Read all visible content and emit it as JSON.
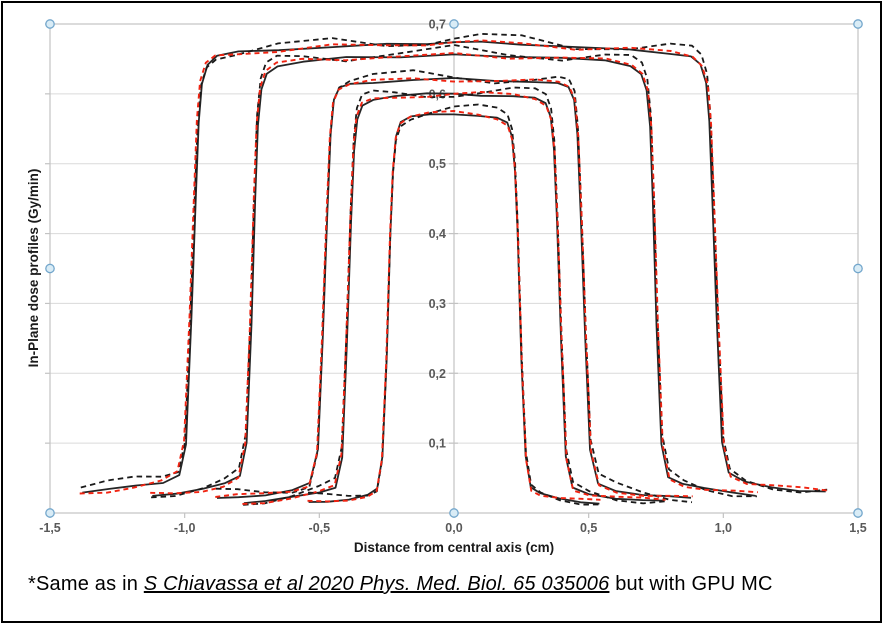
{
  "figure": {
    "caption": {
      "prefix": "*Same as in ",
      "citation": "S Chiavassa et al 2020 Phys. Med. Biol. 65 035006",
      "suffix": " but with GPU MC"
    }
  },
  "colors": {
    "frame_border": "#000000",
    "plot_border": "#c3c3c3",
    "gridline": "#dadada",
    "tick_label": "#595959",
    "axis_title": "#1a1a1a",
    "solid_line": "#262626",
    "dashed_black_line": "#1a1a1a",
    "dashed_red_line": "#f02311",
    "handle_fill": "#d9ecf6",
    "handle_stroke": "#74a7cc"
  },
  "chart_data": {
    "type": "line",
    "title": "",
    "xlabel": "Distance from central axis (cm)",
    "ylabel": "In-Plane  dose profiles (Gy/min)",
    "xlim": [
      -1.5,
      1.5
    ],
    "ylim": [
      0,
      0.7
    ],
    "grid": "horizontal-only",
    "legend": "none",
    "decimal_separator": "comma",
    "x_ticks": {
      "values": [
        -1.5,
        -1.0,
        -0.5,
        0.0,
        0.5,
        1.0,
        1.5
      ],
      "labels": [
        "-1,5",
        "-1,0",
        "-0,5",
        "0,0",
        "0,5",
        "1,0",
        "1,5"
      ]
    },
    "y_ticks": {
      "values": [
        0.1,
        0.2,
        0.3,
        0.4,
        0.5,
        0.6,
        0.7
      ],
      "labels": [
        "0,1",
        "0,2",
        "0,3",
        "0,4",
        "0,5",
        "0,6",
        "0,7"
      ]
    },
    "series_styles": [
      {
        "name": "solid-black",
        "stroke": "#262626",
        "dash": ""
      },
      {
        "name": "dashed-black",
        "stroke": "#1a1a1a",
        "dash": "5.5 4"
      },
      {
        "name": "dashed-red",
        "stroke": "#f02311",
        "dash": "5 3.8"
      }
    ],
    "profiles": [
      {
        "name": "profile-1-widest",
        "points": [
          [
            -1.38,
            0.03
          ],
          [
            -1.28,
            0.033
          ],
          [
            -1.18,
            0.038
          ],
          [
            -1.08,
            0.044
          ],
          [
            -1.02,
            0.056
          ],
          [
            -0.995,
            0.1
          ],
          [
            -0.975,
            0.28
          ],
          [
            -0.958,
            0.46
          ],
          [
            -0.948,
            0.56
          ],
          [
            -0.936,
            0.615
          ],
          [
            -0.915,
            0.642
          ],
          [
            -0.88,
            0.654
          ],
          [
            -0.8,
            0.659
          ],
          [
            -0.65,
            0.663
          ],
          [
            -0.45,
            0.667
          ],
          [
            -0.25,
            0.671
          ],
          [
            -0.1,
            0.673
          ],
          [
            0,
            0.674
          ],
          [
            0.1,
            0.673
          ],
          [
            0.25,
            0.671
          ],
          [
            0.45,
            0.667
          ],
          [
            0.65,
            0.663
          ],
          [
            0.8,
            0.659
          ],
          [
            0.88,
            0.654
          ],
          [
            0.915,
            0.642
          ],
          [
            0.936,
            0.615
          ],
          [
            0.948,
            0.56
          ],
          [
            0.958,
            0.46
          ],
          [
            0.975,
            0.28
          ],
          [
            0.995,
            0.1
          ],
          [
            1.02,
            0.056
          ],
          [
            1.08,
            0.044
          ],
          [
            1.18,
            0.038
          ],
          [
            1.28,
            0.033
          ],
          [
            1.38,
            0.03
          ]
        ]
      },
      {
        "name": "profile-2",
        "points": [
          [
            -1.12,
            0.026
          ],
          [
            -1.03,
            0.029
          ],
          [
            -0.93,
            0.034
          ],
          [
            -0.85,
            0.041
          ],
          [
            -0.795,
            0.052
          ],
          [
            -0.77,
            0.1
          ],
          [
            -0.752,
            0.27
          ],
          [
            -0.738,
            0.45
          ],
          [
            -0.728,
            0.555
          ],
          [
            -0.715,
            0.607
          ],
          [
            -0.695,
            0.63
          ],
          [
            -0.655,
            0.641
          ],
          [
            -0.56,
            0.647
          ],
          [
            -0.4,
            0.651
          ],
          [
            -0.2,
            0.654
          ],
          [
            0,
            0.655
          ],
          [
            0.2,
            0.654
          ],
          [
            0.4,
            0.651
          ],
          [
            0.56,
            0.647
          ],
          [
            0.655,
            0.641
          ],
          [
            0.695,
            0.63
          ],
          [
            0.715,
            0.607
          ],
          [
            0.728,
            0.555
          ],
          [
            0.738,
            0.45
          ],
          [
            0.752,
            0.27
          ],
          [
            0.77,
            0.1
          ],
          [
            0.795,
            0.052
          ],
          [
            0.85,
            0.041
          ],
          [
            0.93,
            0.034
          ],
          [
            1.03,
            0.029
          ],
          [
            1.12,
            0.026
          ]
        ]
      },
      {
        "name": "profile-3",
        "points": [
          [
            -0.88,
            0.02
          ],
          [
            -0.8,
            0.023
          ],
          [
            -0.7,
            0.027
          ],
          [
            -0.6,
            0.033
          ],
          [
            -0.535,
            0.042
          ],
          [
            -0.505,
            0.09
          ],
          [
            -0.487,
            0.25
          ],
          [
            -0.47,
            0.43
          ],
          [
            -0.458,
            0.54
          ],
          [
            -0.446,
            0.59
          ],
          [
            -0.425,
            0.608
          ],
          [
            -0.385,
            0.614
          ],
          [
            -0.3,
            0.617
          ],
          [
            -0.15,
            0.62
          ],
          [
            0,
            0.621
          ],
          [
            0.15,
            0.62
          ],
          [
            0.3,
            0.617
          ],
          [
            0.385,
            0.614
          ],
          [
            0.425,
            0.608
          ],
          [
            0.446,
            0.59
          ],
          [
            0.458,
            0.54
          ],
          [
            0.47,
            0.43
          ],
          [
            0.487,
            0.25
          ],
          [
            0.505,
            0.09
          ],
          [
            0.535,
            0.042
          ],
          [
            0.6,
            0.033
          ],
          [
            0.7,
            0.027
          ],
          [
            0.8,
            0.023
          ],
          [
            0.88,
            0.02
          ]
        ]
      },
      {
        "name": "profile-4",
        "points": [
          [
            -0.78,
            0.016
          ],
          [
            -0.7,
            0.018
          ],
          [
            -0.6,
            0.022
          ],
          [
            -0.5,
            0.028
          ],
          [
            -0.44,
            0.036
          ],
          [
            -0.415,
            0.08
          ],
          [
            -0.398,
            0.24
          ],
          [
            -0.382,
            0.42
          ],
          [
            -0.371,
            0.52
          ],
          [
            -0.359,
            0.565
          ],
          [
            -0.34,
            0.585
          ],
          [
            -0.3,
            0.593
          ],
          [
            -0.22,
            0.597
          ],
          [
            -0.1,
            0.599
          ],
          [
            0,
            0.6
          ],
          [
            0.1,
            0.599
          ],
          [
            0.22,
            0.597
          ],
          [
            0.3,
            0.593
          ],
          [
            0.34,
            0.585
          ],
          [
            0.359,
            0.565
          ],
          [
            0.371,
            0.52
          ],
          [
            0.382,
            0.42
          ],
          [
            0.398,
            0.24
          ],
          [
            0.415,
            0.08
          ],
          [
            0.44,
            0.036
          ],
          [
            0.5,
            0.028
          ],
          [
            0.6,
            0.022
          ],
          [
            0.7,
            0.018
          ],
          [
            0.78,
            0.016
          ]
        ]
      },
      {
        "name": "profile-5-narrowest",
        "points": [
          [
            -0.54,
            0.015
          ],
          [
            -0.47,
            0.017
          ],
          [
            -0.39,
            0.021
          ],
          [
            -0.32,
            0.027
          ],
          [
            -0.285,
            0.035
          ],
          [
            -0.266,
            0.08
          ],
          [
            -0.25,
            0.22
          ],
          [
            -0.236,
            0.4
          ],
          [
            -0.226,
            0.49
          ],
          [
            -0.215,
            0.538
          ],
          [
            -0.198,
            0.558
          ],
          [
            -0.16,
            0.566
          ],
          [
            -0.09,
            0.57
          ],
          [
            0,
            0.572
          ],
          [
            0.09,
            0.57
          ],
          [
            0.16,
            0.566
          ],
          [
            0.198,
            0.558
          ],
          [
            0.215,
            0.538
          ],
          [
            0.226,
            0.49
          ],
          [
            0.236,
            0.4
          ],
          [
            0.25,
            0.22
          ],
          [
            0.266,
            0.08
          ],
          [
            0.285,
            0.035
          ],
          [
            0.32,
            0.027
          ],
          [
            0.39,
            0.021
          ],
          [
            0.47,
            0.017
          ],
          [
            0.54,
            0.015
          ]
        ]
      }
    ]
  }
}
